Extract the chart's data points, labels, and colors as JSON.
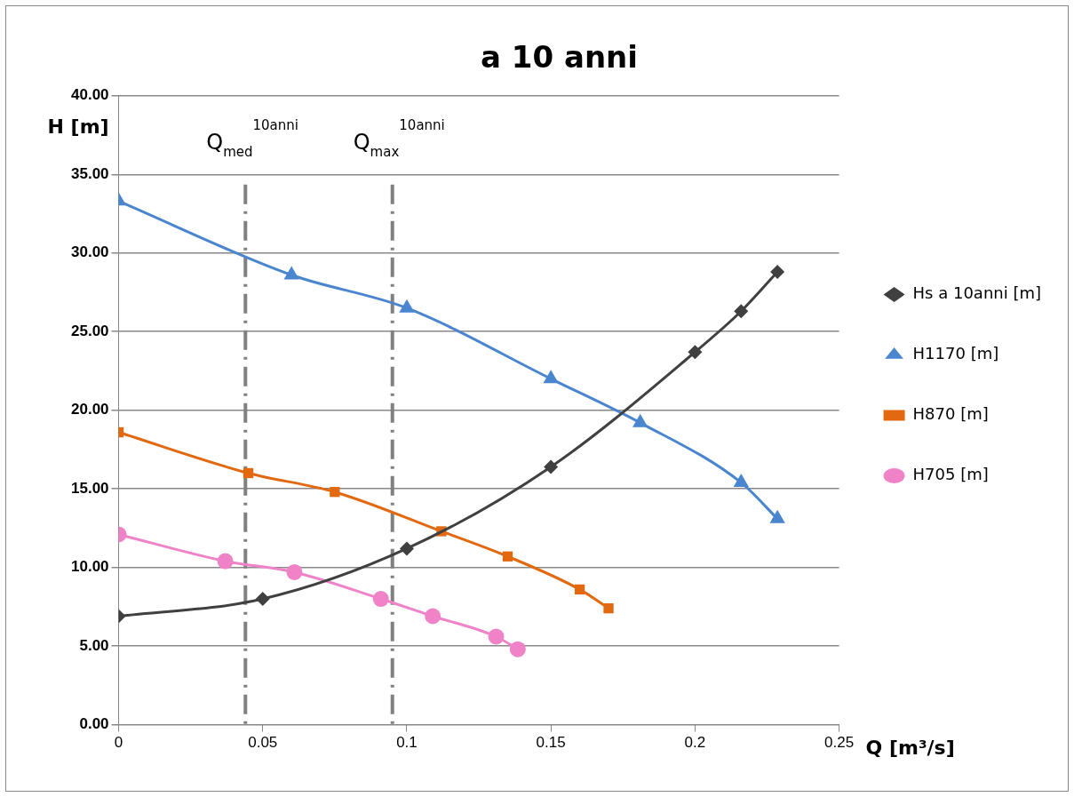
{
  "chart_data": {
    "type": "line",
    "title": "a 10 anni",
    "xlabel": "Q [m³/s]",
    "ylabel": "H [m]",
    "xlim": [
      0,
      0.25
    ],
    "xticks": [
      0,
      0.05,
      0.1,
      0.15,
      0.2,
      0.25
    ],
    "ylim": [
      0,
      40
    ],
    "yticks": [
      {
        "value": 0,
        "label": "0.00"
      },
      {
        "value": 5,
        "label": "5.00"
      },
      {
        "value": 10,
        "label": "10.00"
      },
      {
        "value": 15,
        "label": "15.00"
      },
      {
        "value": 20,
        "label": "20.00"
      },
      {
        "value": 25,
        "label": "25.00"
      },
      {
        "value": 30,
        "label": "30.00"
      },
      {
        "value": 35,
        "label": "35.00"
      },
      {
        "value": 40,
        "label": "40.00"
      }
    ],
    "grid": "y",
    "legend": "right",
    "series": [
      {
        "name": "Hs a 10anni [m]",
        "color": "#404040",
        "marker": "diamond",
        "x": [
          0,
          0.05,
          0.1,
          0.15,
          0.2,
          0.216,
          0.2286
        ],
        "values": [
          6.9,
          8.0,
          11.2,
          16.4,
          23.7,
          26.3,
          28.8
        ]
      },
      {
        "name": "H1170 [m]",
        "color": "#4a86d0",
        "marker": "triangle",
        "x": [
          0,
          0.06,
          0.1,
          0.15,
          0.181,
          0.216,
          0.2286
        ],
        "values": [
          33.3,
          28.6,
          26.5,
          22.0,
          19.2,
          15.4,
          13.1
        ]
      },
      {
        "name": "H870 [m]",
        "color": "#e2690f",
        "marker": "square",
        "x": [
          0,
          0.045,
          0.075,
          0.112,
          0.135,
          0.16,
          0.17
        ],
        "values": [
          18.6,
          16.0,
          14.8,
          12.3,
          10.7,
          8.6,
          7.4
        ]
      },
      {
        "name": "H705 [m]",
        "color": "#f082c8",
        "marker": "circle",
        "x": [
          0,
          0.037,
          0.061,
          0.091,
          0.109,
          0.131,
          0.1385
        ],
        "values": [
          12.1,
          10.4,
          9.7,
          8.0,
          6.9,
          5.6,
          4.8
        ]
      }
    ],
    "ref_lines": [
      {
        "axis": "x",
        "value": 0.044,
        "label": "Q$_{med}$$^{10anni}$",
        "color": "#808080",
        "line_style": "dashed"
      },
      {
        "axis": "x",
        "value": 0.095,
        "label": "Q$_{max}$$^{10anni}$",
        "color": "#808080",
        "line_style": "dashed"
      }
    ]
  }
}
